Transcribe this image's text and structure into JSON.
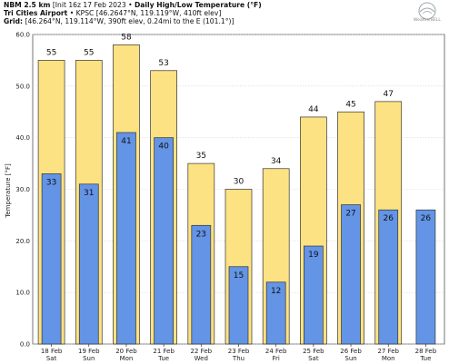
{
  "header": {
    "line1_bold": "NBM 2.5 km",
    "line1_init": "[Init 16z 17 Feb 2023",
    "line1_title": "Daily High/Low Temperature (°F)",
    "line2_bold": "Tri Cities Airport",
    "line2_rest": "KPSC [46.2647°N, 119.119°W, 410ft elev]",
    "line3_bold": "Grid:",
    "line3_rest": "[46.264°N, 119.114°W, 390ft elev, 0.24mi to the E (101.1°)]",
    "logo_text": "WeatherBELL"
  },
  "chart_data": {
    "type": "bar",
    "ylabel": "Temperature [°F]",
    "ylim": [
      0,
      60
    ],
    "yticks": [
      0.0,
      10.0,
      20.0,
      30.0,
      40.0,
      50.0,
      60.0
    ],
    "grid": true,
    "categories": [
      {
        "date": "18 Feb",
        "day": "Sat"
      },
      {
        "date": "19 Feb",
        "day": "Sun"
      },
      {
        "date": "20 Feb",
        "day": "Mon"
      },
      {
        "date": "21 Feb",
        "day": "Tue"
      },
      {
        "date": "22 Feb",
        "day": "Wed"
      },
      {
        "date": "23 Feb",
        "day": "Thu"
      },
      {
        "date": "24 Feb",
        "day": "Fri"
      },
      {
        "date": "25 Feb",
        "day": "Sat"
      },
      {
        "date": "26 Feb",
        "day": "Sun"
      },
      {
        "date": "27 Feb",
        "day": "Mon"
      },
      {
        "date": "28 Feb",
        "day": "Tue"
      }
    ],
    "series": [
      {
        "name": "High",
        "color": "#fde283",
        "values": [
          55,
          55,
          58,
          53,
          35,
          30,
          34,
          44,
          45,
          47,
          null
        ],
        "labels": [
          "55",
          "55",
          "58",
          "53",
          "35",
          "30",
          "34",
          "44",
          "45",
          "47",
          ""
        ]
      },
      {
        "name": "Low",
        "color": "#6394e6",
        "values": [
          33,
          31,
          41,
          40,
          23,
          15,
          12,
          19,
          27,
          26,
          26
        ],
        "labels": [
          "33",
          "31",
          "41",
          "40",
          "23",
          "15",
          "12",
          "19",
          "27",
          "26",
          "26"
        ]
      }
    ]
  }
}
